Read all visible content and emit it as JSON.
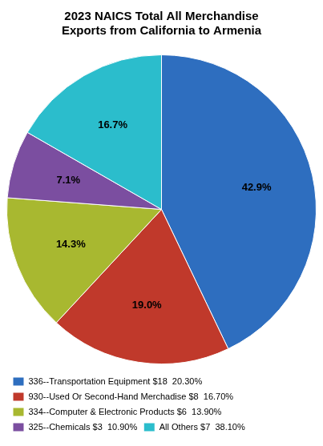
{
  "chart_data": {
    "type": "pie",
    "title": "2023 NAICS Total All Merchandise\nExports from California to Armenia",
    "categories": [
      "336--Transportation Equipment $18  20.30%",
      "930--Used Or Second-Hand Merchadise $8  16.70%",
      "334--Computer & Electronic Products $6  13.90%",
      "325--Chemicals $3  10.90%",
      "All Others $7  38.10%"
    ],
    "values": [
      42.9,
      19.0,
      14.3,
      7.1,
      16.7
    ],
    "value_labels": [
      "42.9%",
      "19.0%",
      "14.3%",
      "7.1%",
      "16.7%"
    ],
    "colors": [
      "#2E6EBF",
      "#C0392B",
      "#A8B830",
      "#7B4EA0",
      "#2BBDCC"
    ],
    "data_labels": true,
    "legend": "bottom"
  }
}
